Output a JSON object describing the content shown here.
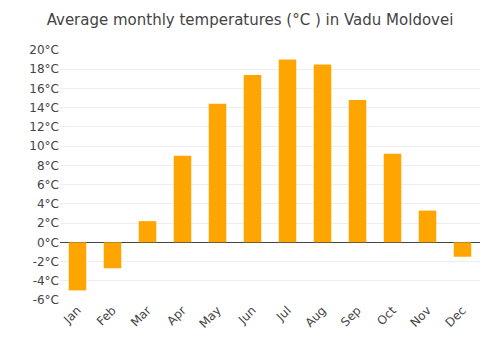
{
  "chart_data": {
    "type": "bar",
    "title": "Average monthly temperatures (°C ) in Vadu Moldovei",
    "categories": [
      "Jan",
      "Feb",
      "Mar",
      "Apr",
      "May",
      "Jun",
      "Jul",
      "Aug",
      "Sep",
      "Oct",
      "Nov",
      "Dec"
    ],
    "values": [
      -5.0,
      -2.7,
      2.2,
      9.0,
      14.4,
      17.4,
      19.0,
      18.5,
      14.8,
      9.2,
      3.3,
      -1.5
    ],
    "color": "#FFA500",
    "ylim": [
      -6,
      20
    ],
    "yticks": [
      {
        "value": -6,
        "label": "-6°C"
      },
      {
        "value": -4,
        "label": "-4°C"
      },
      {
        "value": -2,
        "label": "-2°C"
      },
      {
        "value": 0,
        "label": "0°C"
      },
      {
        "value": 2,
        "label": "2°C"
      },
      {
        "value": 4,
        "label": "4°C"
      },
      {
        "value": 6,
        "label": "6°C"
      },
      {
        "value": 8,
        "label": "8°C"
      },
      {
        "value": 10,
        "label": "10°C"
      },
      {
        "value": 12,
        "label": "12°C"
      },
      {
        "value": 14,
        "label": "14°C"
      },
      {
        "value": 16,
        "label": "16°C"
      },
      {
        "value": 18,
        "label": "18°C"
      },
      {
        "value": 20,
        "label": "20°C"
      }
    ],
    "grid": true
  }
}
